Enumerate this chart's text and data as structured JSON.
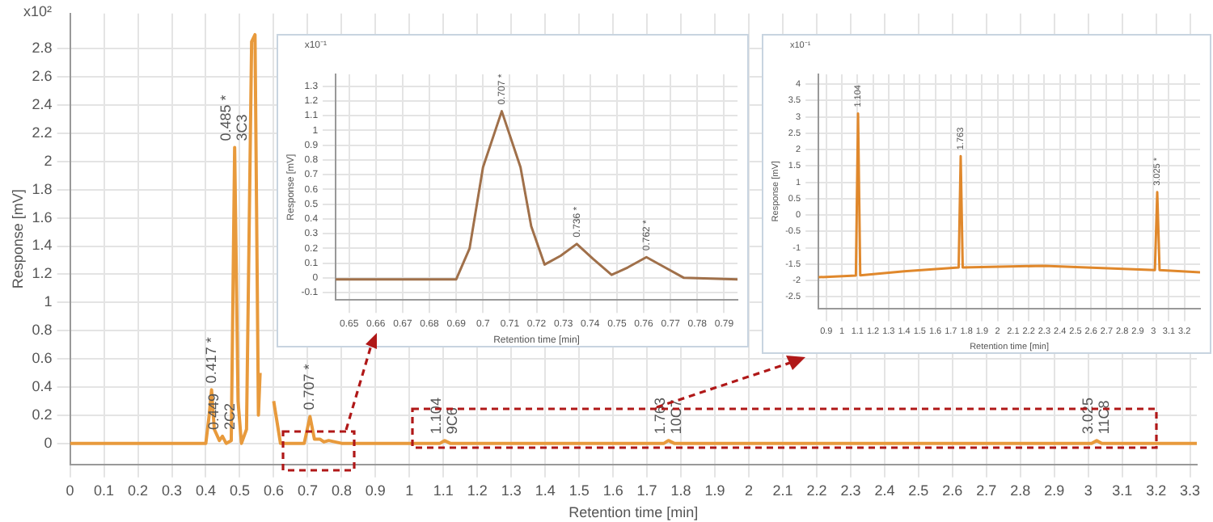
{
  "chart_data": [
    {
      "type": "line",
      "xlabel": "Retention time [min]",
      "ylabel": "Response [mV]",
      "color": "#e89a3c",
      "grid": true,
      "legend": false,
      "marker": "none",
      "line_style": "solid",
      "x": [
        0,
        0.4,
        0.41,
        0.417,
        0.425,
        0.44,
        0.449,
        0.46,
        0.475,
        0.485,
        0.495,
        0.505,
        0.52,
        0.535,
        0.545,
        0.555,
        0.56,
        0.57,
        0.58,
        0.6,
        0.62,
        0.69,
        0.707,
        0.72,
        0.736,
        0.748,
        0.762,
        0.8,
        1.09,
        1.104,
        1.12,
        1.75,
        1.763,
        1.78,
        3.01,
        3.025,
        3.04,
        3.32
      ],
      "values": [
        0,
        0,
        0.2,
        0.38,
        0.1,
        0.02,
        0.05,
        0,
        0.02,
        2.1,
        0.3,
        0,
        0.1,
        2.85,
        2.9,
        0.2,
        0.5,
        null,
        null,
        0.3,
        0,
        0,
        0.19,
        0.03,
        0.03,
        0.01,
        0.02,
        0,
        0,
        0.02,
        0,
        0,
        0.02,
        0,
        0,
        0.02,
        0,
        0
      ],
      "xlim": [
        0,
        3.32
      ],
      "xticks": [
        0,
        0.1,
        0.2,
        0.3,
        0.4,
        0.5,
        0.6,
        0.7,
        0.8,
        0.9,
        1,
        1.1,
        1.2,
        1.3,
        1.4,
        1.5,
        1.6,
        1.7,
        1.8,
        1.9,
        2,
        2.1,
        2.2,
        2.3,
        2.4,
        2.5,
        2.6,
        2.7,
        2.8,
        2.9,
        3,
        3.1,
        3.2,
        3.3
      ],
      "ylim": [
        -0.15,
        3.05
      ],
      "yticks": [
        0,
        0.2,
        0.4,
        0.6,
        0.8,
        1,
        1.2,
        1.4,
        1.6,
        1.8,
        2,
        2.2,
        2.4,
        2.6,
        2.8
      ],
      "annotations": [
        "x10²",
        {
          "text": "0.417 *",
          "x": 0.417,
          "y": 0.38
        },
        {
          "text": "0.449\n2C2",
          "x": 0.449,
          "y": 0.05
        },
        {
          "text": "0.485 *\n3C3",
          "x": 0.485,
          "y": 2.1
        },
        {
          "text": "0.707 *",
          "x": 0.707,
          "y": 0.19
        },
        {
          "text": "1.104\n9C6",
          "x": 1.104,
          "y": 0.02
        },
        {
          "text": "1.763\n10C7",
          "x": 1.763,
          "y": 0.02
        },
        {
          "text": "3.025\n11C8",
          "x": 3.025,
          "y": 0.02
        }
      ]
    },
    {
      "type": "line",
      "xlabel": "Retention time [min]",
      "ylabel": "Response [mV]",
      "color": "#a0704a",
      "grid": true,
      "legend": false,
      "marker": "none",
      "line_style": "solid",
      "x": [
        0.645,
        0.69,
        0.695,
        0.7,
        0.707,
        0.714,
        0.718,
        0.723,
        0.729,
        0.735,
        0.741,
        0.748,
        0.754,
        0.761,
        0.767,
        0.775,
        0.795
      ],
      "values": [
        -0.01,
        -0.01,
        0.2,
        0.75,
        1.13,
        0.75,
        0.35,
        0.09,
        0.15,
        0.23,
        0.13,
        0.02,
        0.07,
        0.14,
        0.08,
        0,
        -0.01
      ],
      "xlim": [
        0.645,
        0.795
      ],
      "xticks": [
        0.65,
        0.66,
        0.67,
        0.68,
        0.69,
        0.7,
        0.71,
        0.72,
        0.73,
        0.74,
        0.75,
        0.76,
        0.77,
        0.78,
        0.79
      ],
      "ylim": [
        -0.15,
        1.38
      ],
      "yticks": [
        -0.1,
        0,
        0.1,
        0.2,
        0.3,
        0.4,
        0.5,
        0.6,
        0.7,
        0.8,
        0.9,
        1,
        1.1,
        1.2,
        1.3
      ],
      "annotations": [
        "x10⁻¹",
        {
          "text": "0.707 *",
          "x": 0.707,
          "y": 1.13
        },
        {
          "text": "0.736 *",
          "x": 0.735,
          "y": 0.23
        },
        {
          "text": "0.762 *",
          "x": 0.761,
          "y": 0.14
        }
      ]
    },
    {
      "type": "line",
      "xlabel": "Retention time [min]",
      "ylabel": "Response [mV]",
      "color": "#e0882c",
      "grid": true,
      "legend": false,
      "marker": "none",
      "line_style": "solid",
      "x": [
        0.85,
        1.09,
        1.104,
        1.118,
        1.4,
        1.75,
        1.763,
        1.776,
        2.3,
        3.01,
        3.025,
        3.04,
        3.3
      ],
      "values": [
        -1.9,
        -1.85,
        3.1,
        -1.84,
        -1.72,
        -1.6,
        1.8,
        -1.6,
        -1.55,
        -1.68,
        0.7,
        -1.68,
        -1.75
      ],
      "xlim": [
        0.85,
        3.3
      ],
      "xticks": [
        0.9,
        1,
        1.1,
        1.2,
        1.3,
        1.4,
        1.5,
        1.6,
        1.7,
        1.8,
        1.9,
        2,
        2.1,
        2.2,
        2.3,
        2.4,
        2.5,
        2.6,
        2.7,
        2.8,
        2.9,
        3,
        3.1,
        3.2
      ],
      "ylim": [
        -2.85,
        4.3
      ],
      "yticks": [
        -2.5,
        -2,
        -1.5,
        -1,
        -0.5,
        0,
        0.5,
        1,
        1.5,
        2,
        2.5,
        3,
        3.5,
        4
      ],
      "annotations": [
        "x10⁻¹",
        {
          "text": "1.104",
          "x": 1.104,
          "y": 3.1
        },
        {
          "text": "1.763",
          "x": 1.763,
          "y": 1.8
        },
        {
          "text": "3.025 *",
          "x": 3.025,
          "y": 0.7
        }
      ]
    }
  ]
}
